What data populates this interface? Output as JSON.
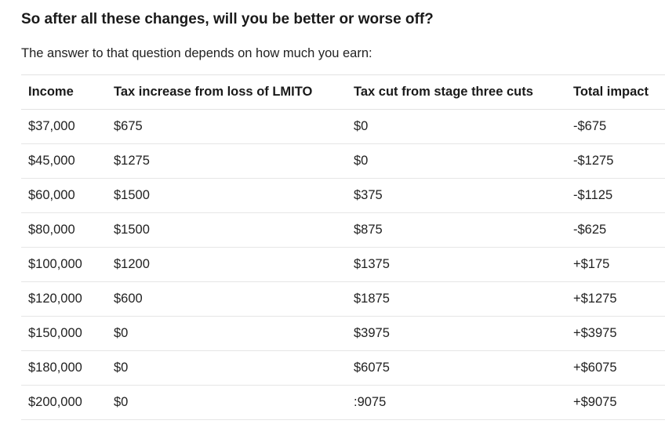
{
  "heading": "So after all these changes, will you be better or worse off?",
  "intro": "The answer to that question depends on how much you earn:",
  "table": {
    "headers": [
      "Income",
      "Tax increase from loss of LMITO",
      "Tax cut from stage three cuts",
      "Total impact"
    ],
    "rows": [
      [
        "$37,000",
        "$675",
        "$0",
        "-$675"
      ],
      [
        "$45,000",
        "$1275",
        "$0",
        "-$1275"
      ],
      [
        "$60,000",
        "$1500",
        "$375",
        "-$1125"
      ],
      [
        "$80,000",
        "$1500",
        "$875",
        "-$625"
      ],
      [
        "$100,000",
        "$1200",
        "$1375",
        "+$175"
      ],
      [
        "$120,000",
        "$600",
        "$1875",
        "+$1275"
      ],
      [
        "$150,000",
        "$0",
        "$3975",
        "+$3975"
      ],
      [
        "$180,000",
        "$0",
        "$6075",
        "+$6075"
      ],
      [
        "$200,000",
        "$0",
        ":9075",
        "+$9075"
      ]
    ]
  }
}
